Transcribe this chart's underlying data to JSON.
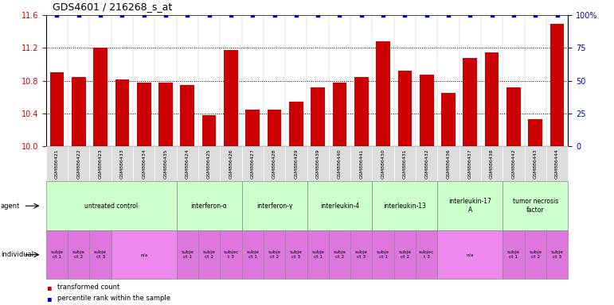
{
  "title": "GDS4601 / 216268_s_at",
  "samples": [
    "GSM886421",
    "GSM886422",
    "GSM886423",
    "GSM886433",
    "GSM886434",
    "GSM886435",
    "GSM886424",
    "GSM886425",
    "GSM886426",
    "GSM886427",
    "GSM886428",
    "GSM886429",
    "GSM886439",
    "GSM886440",
    "GSM886441",
    "GSM886430",
    "GSM886431",
    "GSM886432",
    "GSM886436",
    "GSM886437",
    "GSM886438",
    "GSM886442",
    "GSM886443",
    "GSM886444"
  ],
  "bar_values": [
    10.9,
    10.85,
    11.2,
    10.82,
    10.78,
    10.78,
    10.75,
    10.38,
    11.18,
    10.45,
    10.45,
    10.55,
    10.72,
    10.78,
    10.85,
    11.28,
    10.92,
    10.88,
    10.65,
    11.08,
    11.15,
    10.72,
    10.33,
    11.5
  ],
  "percentile_values": [
    100,
    100,
    100,
    100,
    100,
    100,
    100,
    100,
    100,
    100,
    100,
    100,
    100,
    100,
    100,
    100,
    100,
    100,
    100,
    100,
    100,
    100,
    100,
    100
  ],
  "bar_color": "#cc0000",
  "percentile_color": "#0000cc",
  "ylim_left": [
    10.0,
    11.6
  ],
  "ylim_right": [
    0,
    100
  ],
  "yticks_left": [
    10.0,
    10.4,
    10.8,
    11.2,
    11.6
  ],
  "yticks_right": [
    0,
    25,
    50,
    75,
    100
  ],
  "dotted_lines": [
    10.4,
    10.8,
    11.2
  ],
  "agent_groups": [
    {
      "label": "untreated control",
      "start": 0,
      "end": 5,
      "color": "#ccffcc"
    },
    {
      "label": "interferon-α",
      "start": 6,
      "end": 8,
      "color": "#ccffcc"
    },
    {
      "label": "interferon-γ",
      "start": 9,
      "end": 11,
      "color": "#ccffcc"
    },
    {
      "label": "interleukin-4",
      "start": 12,
      "end": 14,
      "color": "#ccffcc"
    },
    {
      "label": "interleukin-13",
      "start": 15,
      "end": 17,
      "color": "#ccffcc"
    },
    {
      "label": "interleukin-17\nA",
      "start": 18,
      "end": 20,
      "color": "#ccffcc"
    },
    {
      "label": "tumor necrosis\nfactor",
      "start": 21,
      "end": 23,
      "color": "#ccffcc"
    }
  ],
  "individual_groups": [
    {
      "label": "subje\nct 1",
      "start": 0,
      "end": 0,
      "color": "#dd77dd"
    },
    {
      "label": "subje\nct 2",
      "start": 1,
      "end": 1,
      "color": "#dd77dd"
    },
    {
      "label": "subje\nct 3",
      "start": 2,
      "end": 2,
      "color": "#dd77dd"
    },
    {
      "label": "n/a",
      "start": 3,
      "end": 5,
      "color": "#ee88ee"
    },
    {
      "label": "subje\nct 1",
      "start": 6,
      "end": 6,
      "color": "#dd77dd"
    },
    {
      "label": "subje\nct 2",
      "start": 7,
      "end": 7,
      "color": "#dd77dd"
    },
    {
      "label": "subjec\nt 3",
      "start": 8,
      "end": 8,
      "color": "#dd77dd"
    },
    {
      "label": "subje\nct 1",
      "start": 9,
      "end": 9,
      "color": "#dd77dd"
    },
    {
      "label": "subje\nct 2",
      "start": 10,
      "end": 10,
      "color": "#dd77dd"
    },
    {
      "label": "subje\nct 3",
      "start": 11,
      "end": 11,
      "color": "#dd77dd"
    },
    {
      "label": "subje\nct 1",
      "start": 12,
      "end": 12,
      "color": "#dd77dd"
    },
    {
      "label": "subje\nct 2",
      "start": 13,
      "end": 13,
      "color": "#dd77dd"
    },
    {
      "label": "subje\nct 3",
      "start": 14,
      "end": 14,
      "color": "#dd77dd"
    },
    {
      "label": "subje\nct 1",
      "start": 15,
      "end": 15,
      "color": "#dd77dd"
    },
    {
      "label": "subje\nct 2",
      "start": 16,
      "end": 16,
      "color": "#dd77dd"
    },
    {
      "label": "subjec\nt 3",
      "start": 17,
      "end": 17,
      "color": "#dd77dd"
    },
    {
      "label": "n/a",
      "start": 18,
      "end": 20,
      "color": "#ee88ee"
    },
    {
      "label": "subje\nct 1",
      "start": 21,
      "end": 21,
      "color": "#dd77dd"
    },
    {
      "label": "subje\nct 2",
      "start": 22,
      "end": 22,
      "color": "#dd77dd"
    },
    {
      "label": "subje\nct 3",
      "start": 23,
      "end": 23,
      "color": "#dd77dd"
    }
  ],
  "legend_items": [
    {
      "label": "transformed count",
      "color": "#cc0000"
    },
    {
      "label": "percentile rank within the sample",
      "color": "#0000cc"
    }
  ],
  "background_color": "#ffffff",
  "tick_label_color_left": "#cc0000",
  "tick_label_color_right": "#0000cc",
  "sample_bg_color": "#dddddd",
  "fig_width": 7.71,
  "fig_height": 3.84,
  "dpi": 100
}
